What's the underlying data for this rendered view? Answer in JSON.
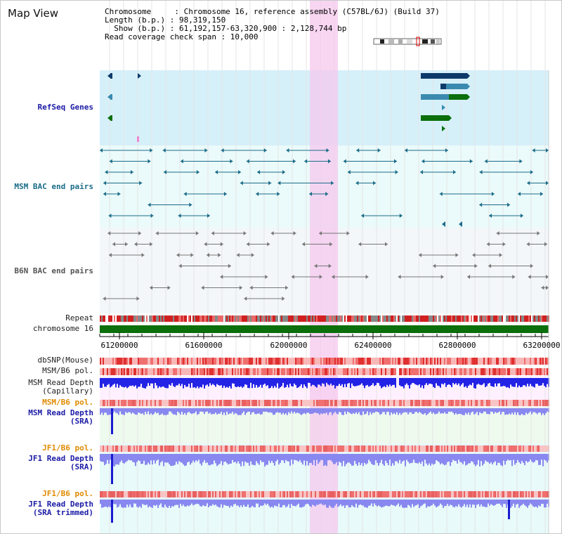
{
  "title": "Map View",
  "info": {
    "line1": "Chromosome     : Chromosome 16, reference assembly (C57BL/6J) (Build 37)",
    "line2": "Length (b.p.) : 98,319,150",
    "line3": "  Show (b.p.) : 61,192,157-63,320,900 : 2,128,744 bp",
    "line4": "Read coverage check span : 10,000"
  },
  "tracks": {
    "refseq": "RefSeq Genes",
    "msm_bac": "MSM BAC end pairs",
    "b6n_bac": "B6N BAC end pairs",
    "repeat": "Repeat",
    "chrom": "chromosome 16",
    "dbsnp": "dbSNP(Mouse)",
    "msm_pol": "MSM/B6 pol.",
    "msm_depth_cap_1": "MSM Read Depth",
    "msm_depth_cap_2": "(Capillary)",
    "msm_pol2": "MSM/B6 pol.",
    "msm_depth_sra_1": "MSM Read Depth",
    "msm_depth_sra_2": "(SRA)",
    "jf1_pol": "JF1/B6 pol.",
    "jf1_depth_1": "JF1 Read Depth",
    "jf1_depth_2": "(SRA)",
    "jf1_pol2": "JF1/B6 pol.",
    "jf1_trim_1": "JF1 Read Depth",
    "jf1_trim_2": "(SRA trimmed)"
  },
  "axis_ticks": [
    "61200000",
    "61600000",
    "62000000",
    "62400000",
    "62800000",
    "63200000"
  ],
  "colors": {
    "refseq_bg": "#d6f0fa",
    "bac_bg": "#ebfafa",
    "highlight": "#f5c8ee",
    "chrom_green": "#0b6f0b",
    "depth_blue": "#2323e6",
    "depth_light": "#8888f0"
  }
}
